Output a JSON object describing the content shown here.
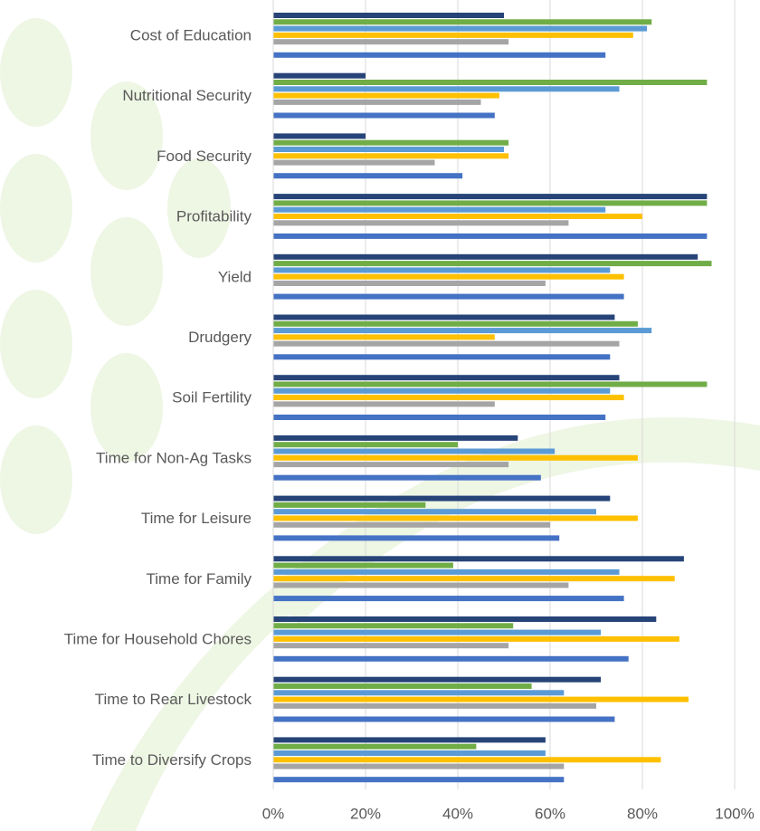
{
  "chart_data": {
    "type": "barh",
    "categories": [
      "Cost of Education",
      "Nutritional Security",
      "Food Security",
      "Profitability",
      "Yield",
      "Drudgery",
      "Soil Fertility",
      "Time for Non-Ag Tasks",
      "Time for Leisure",
      "Time for Family",
      "Time for Household Chores",
      "Time to Rear Livestock",
      "Time to Diversify Crops"
    ],
    "series": [
      {
        "color": "#264478",
        "values": [
          50,
          20,
          20,
          94,
          92,
          74,
          75,
          53,
          73,
          89,
          83,
          71,
          59
        ]
      },
      {
        "color": "#70ad47",
        "values": [
          82,
          94,
          51,
          94,
          95,
          79,
          94,
          40,
          33,
          39,
          52,
          56,
          44
        ]
      },
      {
        "color": "#5b9bd5",
        "values": [
          81,
          75,
          50,
          72,
          73,
          82,
          73,
          61,
          70,
          75,
          71,
          63,
          59
        ]
      },
      {
        "color": "#ffc000",
        "values": [
          78,
          49,
          51,
          80,
          76,
          48,
          76,
          79,
          79,
          87,
          88,
          90,
          84
        ]
      },
      {
        "color": "#a5a5a5",
        "values": [
          51,
          45,
          35,
          64,
          59,
          75,
          48,
          51,
          60,
          64,
          51,
          70,
          63
        ]
      },
      {
        "color": "#4472c4",
        "values": [
          72,
          48,
          41,
          94,
          76,
          73,
          72,
          58,
          62,
          76,
          77,
          74,
          63
        ]
      }
    ],
    "xlim": [
      0,
      100
    ],
    "xticks": [
      {
        "value": 0,
        "label": "0%"
      },
      {
        "value": 20,
        "label": "20%"
      },
      {
        "value": 40,
        "label": "40%"
      },
      {
        "value": 60,
        "label": "60%"
      },
      {
        "value": 80,
        "label": "80%"
      },
      {
        "value": 100,
        "label": "100%"
      }
    ],
    "grid": true
  }
}
